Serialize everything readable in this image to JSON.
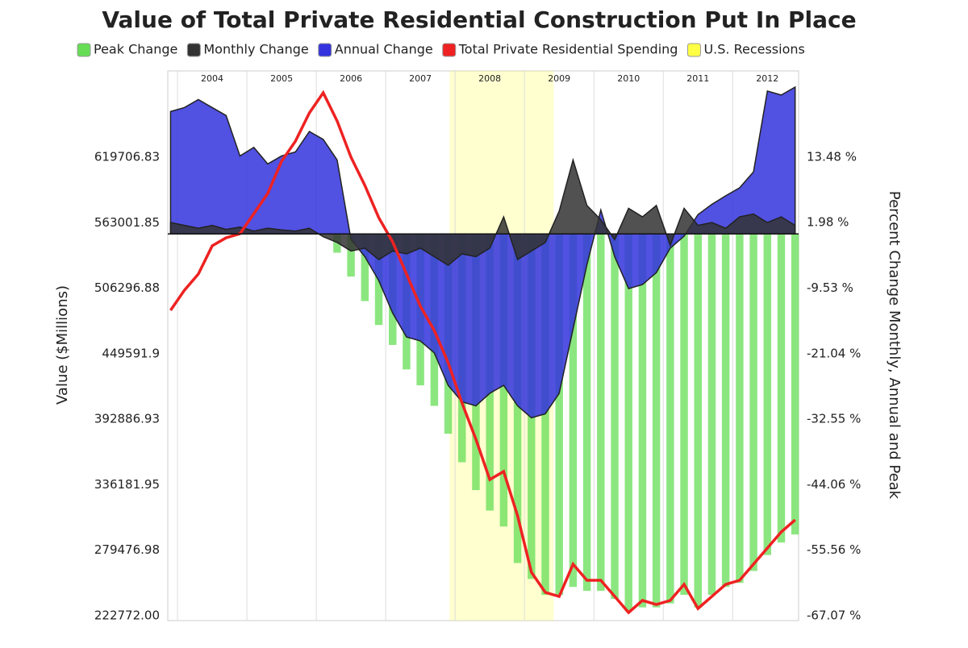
{
  "chart_data": {
    "type": "combo",
    "title": "Value of Total Private Residential Construction Put In Place",
    "y_label": "Value ($Millions)",
    "y2_label": "Percent Change Monthly, Annual and Peak",
    "x": [
      2003.9,
      2004.1,
      2004.3,
      2004.5,
      2004.7,
      2004.9,
      2005.1,
      2005.3,
      2005.5,
      2005.7,
      2005.9,
      2006.1,
      2006.3,
      2006.5,
      2006.7,
      2006.9,
      2007.1,
      2007.3,
      2007.5,
      2007.7,
      2007.9,
      2008.1,
      2008.3,
      2008.5,
      2008.7,
      2008.9,
      2009.1,
      2009.3,
      2009.5,
      2009.7,
      2009.9,
      2010.1,
      2010.3,
      2010.5,
      2010.7,
      2010.9,
      2011.1,
      2011.3,
      2011.5,
      2011.7,
      2011.9,
      2012.1,
      2012.3,
      2012.5,
      2012.7,
      2012.9
    ],
    "xlim": [
      2003.86,
      2012.95
    ],
    "xticks": [
      2004,
      2005,
      2006,
      2007,
      2008,
      2009,
      2010,
      2011,
      2012
    ],
    "ylim": [
      218587,
      694337
    ],
    "yticks": [
      {
        "value": 222772,
        "label": "222772.00"
      },
      279476.98,
      336181.95,
      392886.93,
      449591.9,
      506296.88,
      563001.85,
      619706.83
    ],
    "y2lim": [
      -67.92,
      28.63
    ],
    "y2ticks": [
      {
        "value": -67.07,
        "label": "-67.07 %"
      },
      {
        "value": -55.56,
        "label": "-55.56 %"
      },
      {
        "value": -44.06,
        "label": "-44.06 %"
      },
      {
        "value": -32.55,
        "label": "-32.55 %"
      },
      {
        "value": -21.04,
        "label": "-21.04 %"
      },
      {
        "value": -9.53,
        "label": "-9.53 %"
      },
      {
        "value": 1.98,
        "label": "1.98 %"
      },
      {
        "value": 13.48,
        "label": "13.48 %"
      }
    ],
    "grid": true,
    "legend": "top",
    "series": [
      {
        "name": "Peak Change",
        "kind": "bar",
        "axis": "y2",
        "color": "#66dd55",
        "values": [
          0,
          0,
          0,
          0,
          0,
          0,
          0,
          0,
          0,
          0,
          0,
          0,
          -3.3,
          -7.5,
          -11.8,
          -16.0,
          -19.5,
          -23.8,
          -26.6,
          -30.2,
          -35.1,
          -40.1,
          -45.0,
          -48.6,
          -51.4,
          -57.8,
          -60.6,
          -63.4,
          -63.4,
          -62.0,
          -62.7,
          -62.7,
          -64.1,
          -66.3,
          -65.6,
          -65.6,
          -64.9,
          -63.4,
          -65.6,
          -63.4,
          -62.0,
          -61.3,
          -59.2,
          -56.4,
          -54.2,
          -52.8
        ]
      },
      {
        "name": "Annual Change",
        "kind": "area",
        "axis": "y2",
        "color": "#3333dd",
        "values": [
          21.5,
          22.2,
          23.6,
          22.2,
          20.8,
          13.7,
          15.2,
          12.3,
          13.7,
          14.4,
          18.0,
          16.6,
          13.0,
          -1.0,
          -4.0,
          -8.2,
          -13.9,
          -18.1,
          -18.8,
          -20.9,
          -26.6,
          -29.5,
          -30.2,
          -28.0,
          -26.6,
          -30.2,
          -32.3,
          -31.6,
          -28.0,
          -16.7,
          -5.4,
          4.2,
          -4.0,
          -9.6,
          -8.9,
          -6.8,
          -2.5,
          -0.4,
          3.4,
          5.2,
          6.7,
          8.1,
          10.9,
          25.1,
          24.4,
          25.8
        ]
      },
      {
        "name": "Monthly Change",
        "kind": "area",
        "axis": "y2",
        "color": "#333333",
        "values": [
          2.0,
          1.5,
          1.0,
          1.5,
          0.8,
          1.2,
          0.5,
          1.0,
          0.7,
          0.5,
          1.0,
          -0.5,
          -1.5,
          -3.0,
          -2.5,
          -4.5,
          -3.0,
          -3.5,
          -2.5,
          -4.0,
          -5.5,
          -3.5,
          -4.0,
          -2.5,
          3.0,
          -4.5,
          -3.0,
          -1.5,
          4.0,
          13.0,
          5.0,
          2.5,
          -1.0,
          4.5,
          3.0,
          5.0,
          -2.0,
          4.5,
          1.5,
          2.0,
          1.0,
          3.0,
          3.5,
          2.0,
          3.0,
          1.5
        ]
      },
      {
        "name": "Total Private Residential Spending",
        "kind": "line",
        "axis": "y",
        "color": "#ee2222",
        "values": [
          487120,
          504560,
          518500,
          542930,
          549900,
          553400,
          570800,
          588250,
          616160,
          633600,
          658000,
          675450,
          651050,
          619650,
          595240,
          567330,
          546400,
          518500,
          490600,
          469690,
          441790,
          406900,
          375530,
          340650,
          347630,
          309400,
          260440,
          243000,
          239500,
          267410,
          253460,
          253460,
          239500,
          225560,
          236020,
          232530,
          236020,
          249970,
          229050,
          239500,
          249970,
          253460,
          267410,
          281360,
          295310,
          305770
        ]
      }
    ],
    "recessions": {
      "name": "U.S. Recessions",
      "color": "#ffff44",
      "start": 2007.92,
      "end": 2009.42
    }
  }
}
